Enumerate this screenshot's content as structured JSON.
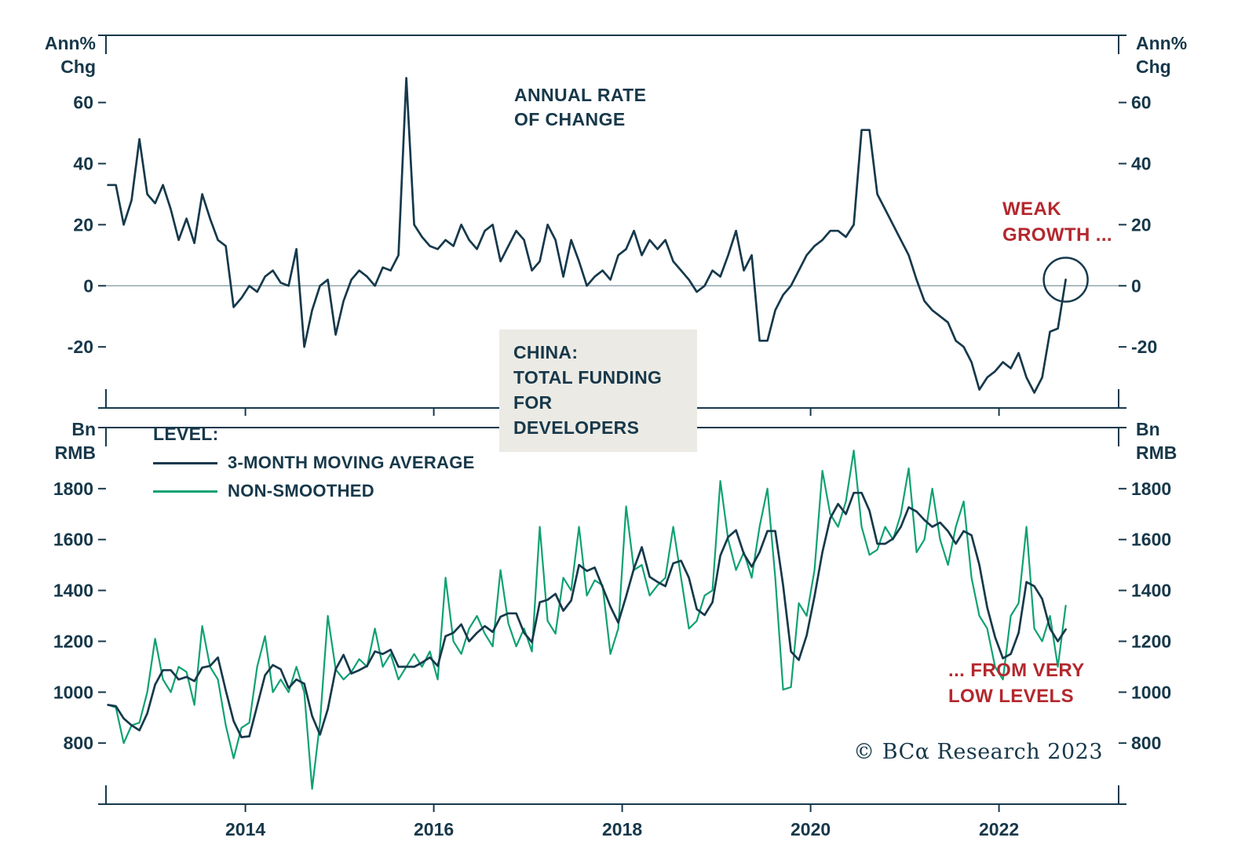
{
  "figure": {
    "subject": {
      "line1": "CHINA:",
      "line2": "TOTAL FUNDING",
      "line3": "FOR DEVELOPERS"
    },
    "copyright": "© BCα Research 2023"
  },
  "colors": {
    "axis": "#16394C",
    "text": "#17384A",
    "dark_line": "#16394C",
    "green_line": "#0FA173",
    "red": "#B3282D",
    "box_bg": "#ECEAE4",
    "zero_line": "#93A7AE"
  },
  "chart_data": [
    {
      "type": "line",
      "panel": "top",
      "title": "ANNUAL RATE OF CHANGE",
      "title_lines": {
        "line1": "ANNUAL RATE",
        "line2": "OF CHANGE"
      },
      "unit_lines": [
        "Ann%",
        "Chg"
      ],
      "ylabel": "Annual % change",
      "yticks": [
        60,
        40,
        20,
        0,
        -20
      ],
      "ylim": [
        -40,
        82
      ],
      "xlim": [
        2012.52,
        2023.27
      ],
      "xticks": [
        2014,
        2016,
        2018,
        2020,
        2022
      ],
      "x_start_year": 2012,
      "x_start_month": 7,
      "frequency": "monthly",
      "zero_line": true,
      "grid": false,
      "legend_position": "none",
      "series": [
        {
          "name": "ANNUAL RATE OF CHANGE",
          "color": "#16394C",
          "values": [
            33,
            33,
            20,
            28,
            48,
            30,
            27,
            33,
            25,
            15,
            22,
            14,
            30,
            22,
            15,
            13,
            -7,
            -4,
            0,
            -2,
            3,
            5,
            1,
            0,
            12,
            -20,
            -8,
            0,
            2,
            -16,
            -5,
            2,
            5,
            3,
            0,
            6,
            5,
            10,
            68,
            20,
            16,
            13,
            12,
            15,
            13,
            20,
            15,
            12,
            18,
            20,
            8,
            13,
            18,
            15,
            5,
            8,
            20,
            15,
            3,
            15,
            8,
            0,
            3,
            5,
            2,
            10,
            12,
            18,
            10,
            15,
            12,
            15,
            8,
            5,
            2,
            -2,
            0,
            5,
            3,
            10,
            18,
            5,
            10,
            -18,
            -18,
            -8,
            -3,
            0,
            5,
            10,
            13,
            15,
            18,
            18,
            16,
            20,
            51,
            51,
            30,
            25,
            20,
            15,
            10,
            2,
            -5,
            -8,
            -10,
            -12,
            -18,
            -20,
            -25,
            -34,
            -30,
            -28,
            -25,
            -27,
            -22,
            -30,
            -35,
            -30,
            -15,
            -14,
            2
          ]
        }
      ],
      "annotations": {
        "callout": {
          "line1": "WEAK",
          "line2": "GROWTH ...",
          "color": "#B3282D"
        },
        "circle_on_last_point": true
      }
    },
    {
      "type": "line",
      "panel": "bottom",
      "title": "LEVEL (BN RMB)",
      "legend_title": "LEVEL:",
      "unit_lines": [
        "Bn",
        "RMB"
      ],
      "ylabel": "Bn RMB",
      "yticks": [
        1800,
        1600,
        1400,
        1200,
        1000,
        800
      ],
      "ylim": [
        560,
        2040
      ],
      "xlim": [
        2012.52,
        2023.27
      ],
      "xticks": [
        2014,
        2016,
        2018,
        2020,
        2022
      ],
      "x_start_year": 2012,
      "x_start_month": 7,
      "frequency": "monthly",
      "zero_line": false,
      "grid": false,
      "legend_position": "top-left",
      "series": [
        {
          "name": "NON-SMOOTHED",
          "color": "#0FA173",
          "values": [
            950,
            940,
            800,
            870,
            880,
            1000,
            1210,
            1050,
            1000,
            1100,
            1080,
            950,
            1260,
            1100,
            1050,
            870,
            740,
            860,
            880,
            1100,
            1220,
            1000,
            1050,
            1000,
            1100,
            1000,
            620,
            880,
            1300,
            1090,
            1050,
            1080,
            1130,
            1100,
            1250,
            1100,
            1150,
            1050,
            1100,
            1150,
            1100,
            1160,
            1050,
            1450,
            1200,
            1150,
            1250,
            1300,
            1230,
            1180,
            1480,
            1270,
            1180,
            1250,
            1160,
            1650,
            1280,
            1230,
            1450,
            1400,
            1650,
            1380,
            1440,
            1420,
            1150,
            1250,
            1730,
            1480,
            1500,
            1380,
            1420,
            1450,
            1650,
            1450,
            1250,
            1280,
            1380,
            1400,
            1830,
            1600,
            1480,
            1550,
            1450,
            1650,
            1800,
            1450,
            1010,
            1020,
            1350,
            1300,
            1480,
            1870,
            1700,
            1650,
            1750,
            1950,
            1650,
            1540,
            1560,
            1650,
            1600,
            1700,
            1880,
            1550,
            1600,
            1800,
            1600,
            1500,
            1650,
            1750,
            1450,
            1300,
            1250,
            1100,
            1050,
            1300,
            1350,
            1650,
            1250,
            1200,
            1300,
            1100,
            1340
          ]
        },
        {
          "name": "3-MONTH MOVING AVERAGE",
          "color": "#16394C",
          "derived_from_series": 0,
          "derivation": "3-month moving average of NON-SMOOTHED"
        }
      ],
      "annotations": {
        "callout": {
          "line1": "... FROM VERY",
          "line2": "LOW LEVELS",
          "color": "#B3282D"
        }
      }
    }
  ]
}
